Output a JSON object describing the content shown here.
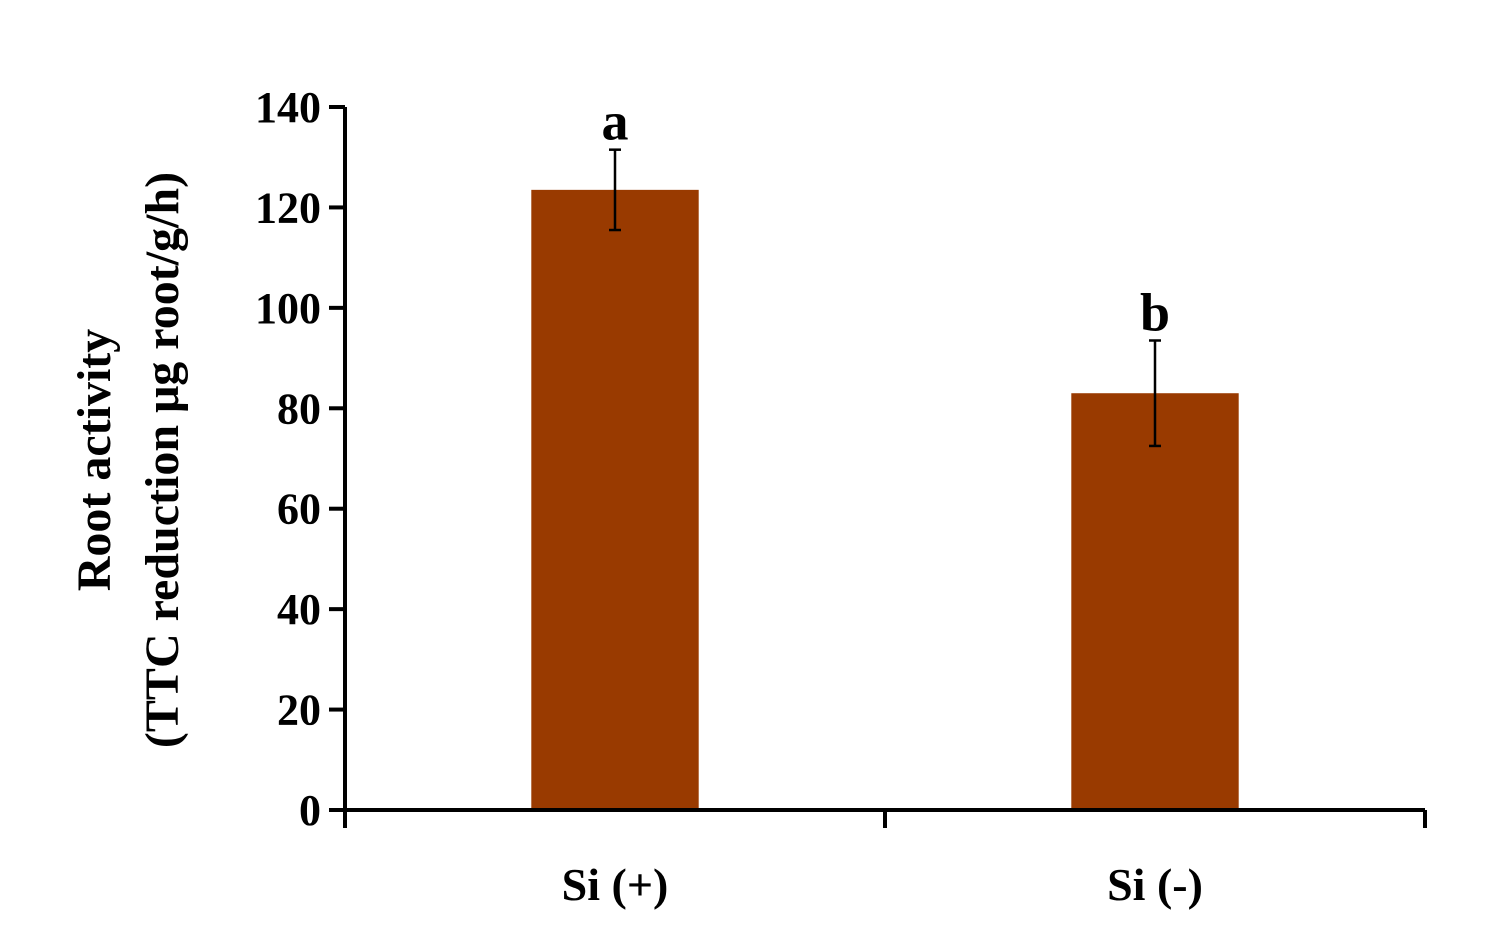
{
  "chart_data": {
    "type": "bar",
    "title": "",
    "ylabel_lines": [
      "Root activity",
      "(TTC reduction μg root/g/h)"
    ],
    "xlabel": "",
    "ylim": [
      0,
      140
    ],
    "ytick_step": 20,
    "yticks": [
      "0",
      "20",
      "40",
      "60",
      "80",
      "100",
      "120",
      "140"
    ],
    "categories": [
      "Si (+)",
      "Si (-)"
    ],
    "values": [
      123.5,
      83
    ],
    "errors": [
      8,
      10.5
    ],
    "significance": [
      "a",
      "b"
    ],
    "bar_color": "#993a00",
    "grid": false,
    "legend": "none"
  }
}
